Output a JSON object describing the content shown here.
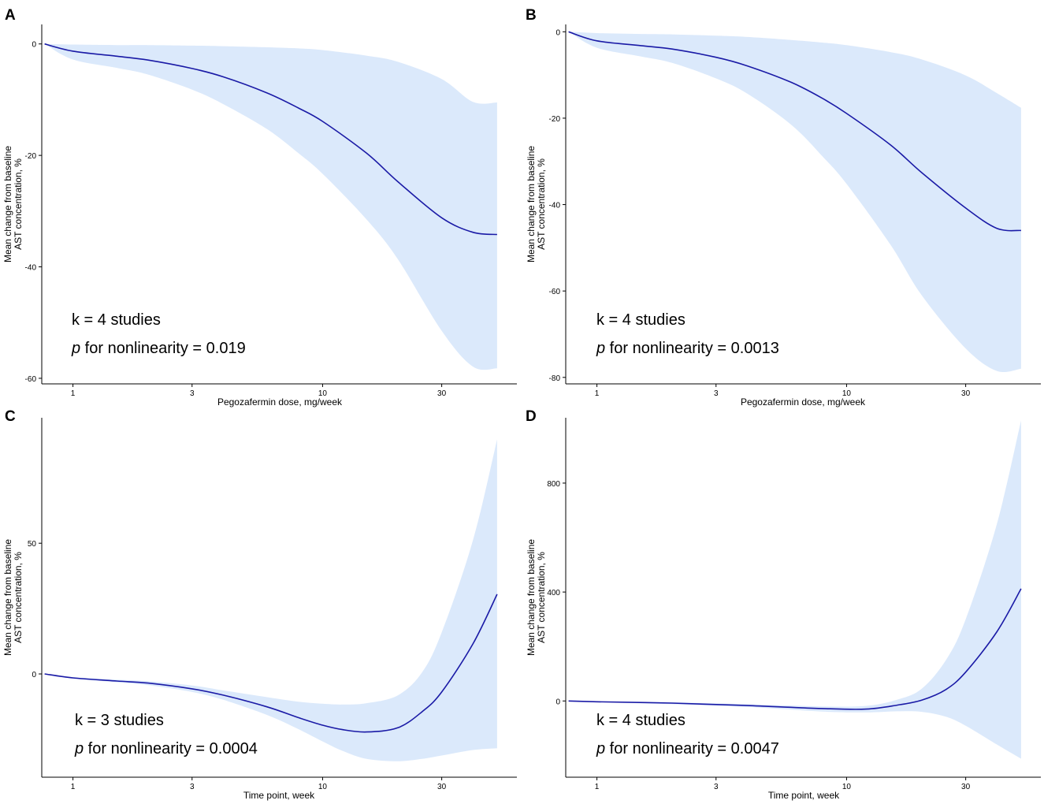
{
  "colors": {
    "band": "#dbe9fb",
    "line": "#1a1aa6",
    "axis": "#000000",
    "text": "#000000"
  },
  "chart_data": [
    {
      "panel": "A",
      "type": "line",
      "xscale": "log",
      "xlabel": "Pegozafermin dose, mg/week",
      "ylabel": [
        "Mean change from baseline",
        "AST concentration, %"
      ],
      "xlim": [
        0.75,
        60
      ],
      "ylim": [
        -61,
        3.5
      ],
      "xticks": [
        1,
        3,
        10,
        30
      ],
      "yticks": [
        0,
        -20,
        -40,
        -60
      ],
      "x": [
        0.77,
        1,
        1.5,
        2,
        3,
        4,
        6,
        8,
        10,
        15,
        20,
        30,
        40,
        50
      ],
      "y": [
        0,
        -1.3,
        -2.2,
        -2.9,
        -4.4,
        -5.9,
        -8.8,
        -11.5,
        -13.9,
        -19.6,
        -24.7,
        -31.2,
        -33.8,
        -34.2
      ],
      "lower": [
        0,
        -2.8,
        -4.3,
        -5.5,
        -8.2,
        -10.8,
        -15.3,
        -19.6,
        -23.3,
        -31.5,
        -38.6,
        -51.5,
        -57.9,
        -58.2
      ],
      "upper": [
        0,
        -0.1,
        -0.2,
        -0.2,
        -0.3,
        -0.4,
        -0.6,
        -0.8,
        -1.1,
        -2.1,
        -3.2,
        -6.3,
        -10.4,
        -10.5
      ],
      "annotation_k": "k = 4 studies",
      "annotation_p_symbol": "p",
      "annotation_p_text": " for nonlinearity = 0.019"
    },
    {
      "panel": "B",
      "type": "line",
      "xscale": "log",
      "xlabel": "Pegozafermin dose, mg/week",
      "ylabel": [
        "Mean change from baseline",
        "AST concentration, %"
      ],
      "xlim": [
        0.75,
        60
      ],
      "ylim": [
        -81.5,
        1.7
      ],
      "xticks": [
        1,
        3,
        10,
        30
      ],
      "yticks": [
        0,
        -20,
        -40,
        -60,
        -80
      ],
      "x": [
        0.77,
        1,
        1.5,
        2,
        3,
        4,
        6,
        8,
        10,
        15,
        20,
        30,
        40,
        50
      ],
      "y": [
        0,
        -2.1,
        -3.2,
        -4.0,
        -5.9,
        -7.9,
        -11.7,
        -15.4,
        -18.9,
        -26.2,
        -32.6,
        -40.8,
        -45.5,
        -46.0
      ],
      "lower": [
        0,
        -3.7,
        -5.7,
        -7.2,
        -10.8,
        -14.3,
        -21.5,
        -28.8,
        -35.2,
        -49.3,
        -61.0,
        -73.3,
        -78.5,
        -78.0
      ],
      "upper": [
        0,
        -0.3,
        -0.5,
        -0.6,
        -0.9,
        -1.2,
        -1.9,
        -2.5,
        -3.1,
        -4.7,
        -6.4,
        -10.1,
        -14.2,
        -17.6
      ],
      "annotation_k": "k = 4 studies",
      "annotation_p_symbol": "p",
      "annotation_p_text": " for nonlinearity = 0.0013"
    },
    {
      "panel": "C",
      "type": "line",
      "xscale": "log",
      "xlabel": "Time point, week",
      "ylabel": [
        "Mean change from baseline",
        "AST concentration, %"
      ],
      "xlim": [
        0.75,
        60
      ],
      "ylim": [
        -39.5,
        98
      ],
      "xticks": [
        1,
        3,
        10,
        30
      ],
      "yticks": [
        0,
        50
      ],
      "x": [
        0.77,
        1,
        1.5,
        2,
        3,
        4,
        6,
        8,
        10,
        12,
        15,
        20,
        25,
        30,
        40,
        50
      ],
      "y": [
        0,
        -1.5,
        -2.7,
        -3.5,
        -5.7,
        -8.1,
        -12.6,
        -16.7,
        -19.6,
        -21.3,
        -22.2,
        -20.6,
        -14.5,
        -6.9,
        11.5,
        30.5
      ],
      "lower": [
        0,
        -1.8,
        -3.2,
        -4.3,
        -6.9,
        -9.9,
        -15.7,
        -21.1,
        -25.8,
        -29.4,
        -32.5,
        -33.4,
        -32.5,
        -31.2,
        -29.1,
        -28.4
      ],
      "upper": [
        0,
        -1.2,
        -2.2,
        -2.8,
        -4.4,
        -6.3,
        -8.9,
        -10.6,
        -11.4,
        -11.7,
        -11.2,
        -8.2,
        0.5,
        15.9,
        51.1,
        89.7
      ],
      "annotation_k": "k = 3 studies",
      "annotation_p_symbol": "p",
      "annotation_p_text": " for nonlinearity = 0.0004"
    },
    {
      "panel": "D",
      "type": "line",
      "xscale": "log",
      "xlabel": "Time point, week",
      "ylabel": [
        "Mean change from baseline",
        "AST concentration, %"
      ],
      "xlim": [
        0.75,
        60
      ],
      "ylim": [
        -280,
        1040
      ],
      "xticks": [
        1,
        3,
        10,
        30
      ],
      "yticks": [
        0,
        400,
        800
      ],
      "x": [
        0.77,
        1,
        2,
        4,
        8,
        12,
        16,
        20,
        25,
        30,
        40,
        50
      ],
      "y": [
        0,
        -3,
        -8,
        -17,
        -28,
        -30,
        -15,
        3,
        42,
        106,
        254,
        412
      ],
      "lower": [
        0,
        -4,
        -12,
        -22,
        -39,
        -42,
        -38,
        -40,
        -58,
        -91,
        -160,
        -212
      ],
      "upper": [
        0,
        -2,
        -5,
        -12,
        -20,
        -18,
        5,
        45,
        150,
        300,
        650,
        1030
      ],
      "annotation_k": "k = 4 studies",
      "annotation_p_symbol": "p",
      "annotation_p_text": " for nonlinearity = 0.0047"
    }
  ]
}
